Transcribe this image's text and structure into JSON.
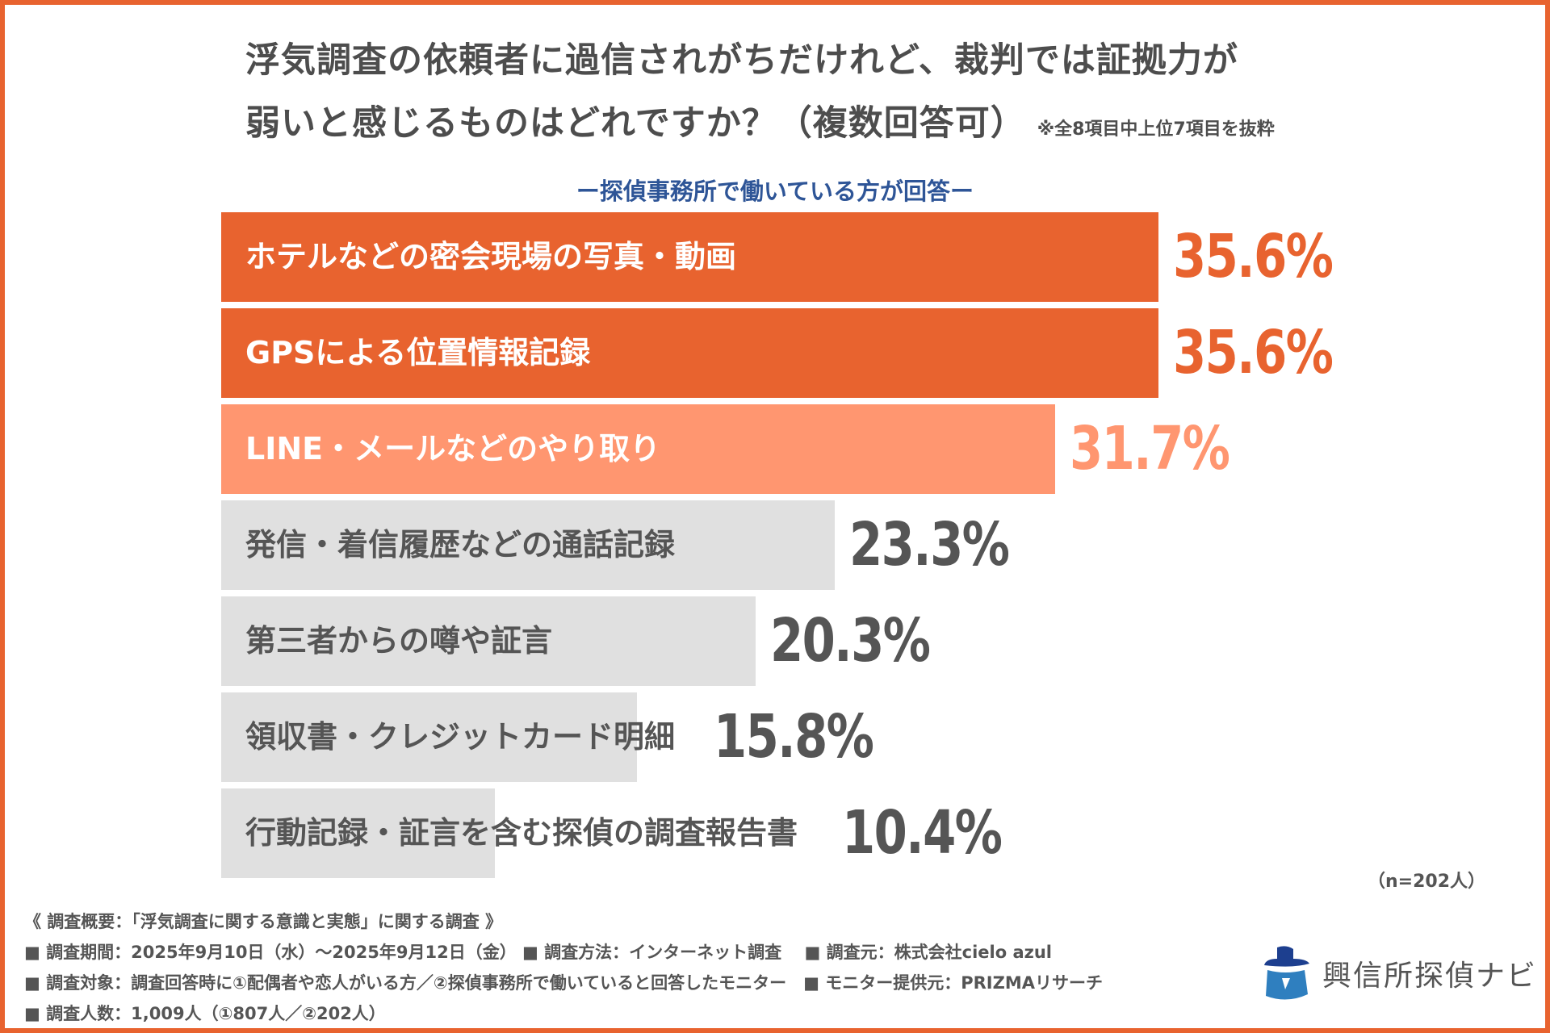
{
  "header": {
    "title_line1": "浮気調査の依頼者に過信されがちだけれど、裁判では証拠力が",
    "title_line2": "弱いと感じるものはどれですか？（複数回答可）",
    "note": "※全8項目中上位7項目を抜粋",
    "subtitle": "ー探偵事務所で働いている方が回答ー"
  },
  "chart_data": {
    "type": "bar",
    "orientation": "horizontal",
    "categories": [
      "ホテルなどの密会現場の写真・動画",
      "GPSによる位置情報記録",
      "LINE・メールなどのやり取り",
      "発信・着信履歴などの通話記録",
      "第三者からの噂や証言",
      "領収書・クレジットカード明細",
      "行動記録・証言を含む探偵の調査報告書"
    ],
    "values": [
      35.6,
      35.6,
      31.7,
      23.3,
      20.3,
      15.8,
      10.4
    ],
    "value_labels": [
      "35.6%",
      "35.6%",
      "31.7%",
      "23.3%",
      "20.3%",
      "15.8%",
      "10.4%"
    ],
    "unit": "%",
    "colors": [
      "#E8632F",
      "#E8632F",
      "#FF9670",
      "#E0E0E0",
      "#E0E0E0",
      "#E0E0E0",
      "#E0E0E0"
    ],
    "label_colors": [
      "#ffffff",
      "#ffffff",
      "#ffffff",
      "#555555",
      "#555555",
      "#555555",
      "#555555"
    ],
    "value_colors": [
      "#E8632F",
      "#E8632F",
      "#FF9670",
      "#555555",
      "#555555",
      "#555555",
      "#555555"
    ],
    "sample": "（n=202人）",
    "grid": false
  },
  "footer": {
    "line1": "《 調査概要：「浮気調査に関する意識と実態」に関する調査 》",
    "line2": "■ 調査期間：2025年9月10日（水）～2025年9月12日（金）  ■ 調査方法：インターネット調査　 ■ 調査元：株式会社cielo azul",
    "line3": "■ 調査対象：調査回答時に①配偶者や恋人がいる方／②探偵事務所で働いていると回答したモニター　■ モニター提供元：PRIZMAリサーチ",
    "line4": "■ 調査人数：1,009人（①807人／②202人）"
  },
  "logo": {
    "text": "興信所探偵ナビ",
    "icon": "detective-icon",
    "color": "#2E5597"
  }
}
